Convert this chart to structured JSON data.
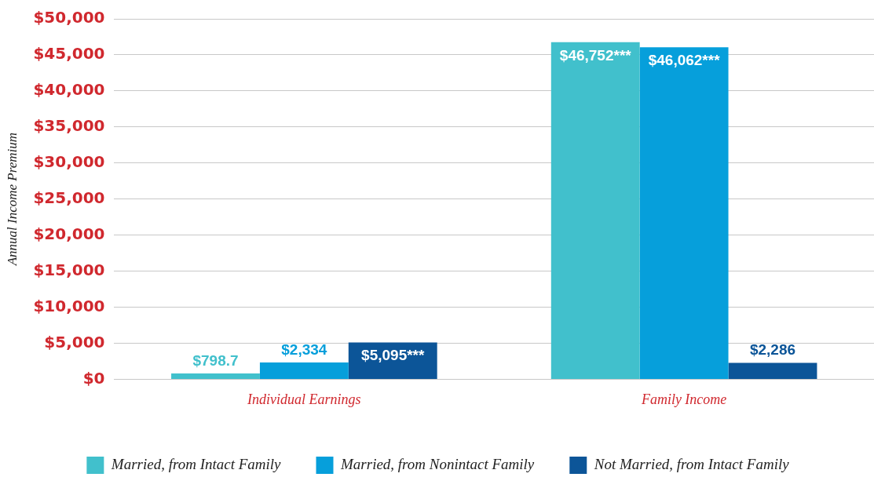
{
  "chart_data": {
    "type": "bar",
    "ylabel": "Annual Income Premium",
    "categories": [
      "Individual Earnings",
      "Family Income"
    ],
    "series": [
      {
        "name": "Married, from Intact Family",
        "color": "#41c0cc",
        "values": [
          798.7,
          46752
        ],
        "value_labels": [
          "$798.7",
          "$46,752***"
        ]
      },
      {
        "name": "Married, from Nonintact Family",
        "color": "#069fdb",
        "values": [
          2334,
          46062
        ],
        "value_labels": [
          "$2,334",
          "$46,062***"
        ]
      },
      {
        "name": "Not Married, from Intact Family",
        "color": "#0c5598",
        "values": [
          5095,
          2286
        ],
        "value_labels": [
          "$5,095***",
          "$2,286"
        ]
      }
    ],
    "ylim": [
      0,
      50000
    ],
    "yticks": [
      {
        "value": 0,
        "label": "$0"
      },
      {
        "value": 5000,
        "label": "$5,000"
      },
      {
        "value": 10000,
        "label": "$10,000"
      },
      {
        "value": 15000,
        "label": "$15,000"
      },
      {
        "value": 20000,
        "label": "$20,000"
      },
      {
        "value": 25000,
        "label": "$25,000"
      },
      {
        "value": 30000,
        "label": "$30,000"
      },
      {
        "value": 35000,
        "label": "$35,000"
      },
      {
        "value": 40000,
        "label": "$40,000"
      },
      {
        "value": 45000,
        "label": "$45,000"
      },
      {
        "value": 50000,
        "label": "$50,000"
      }
    ],
    "grid": "y",
    "legend": "bottom"
  }
}
